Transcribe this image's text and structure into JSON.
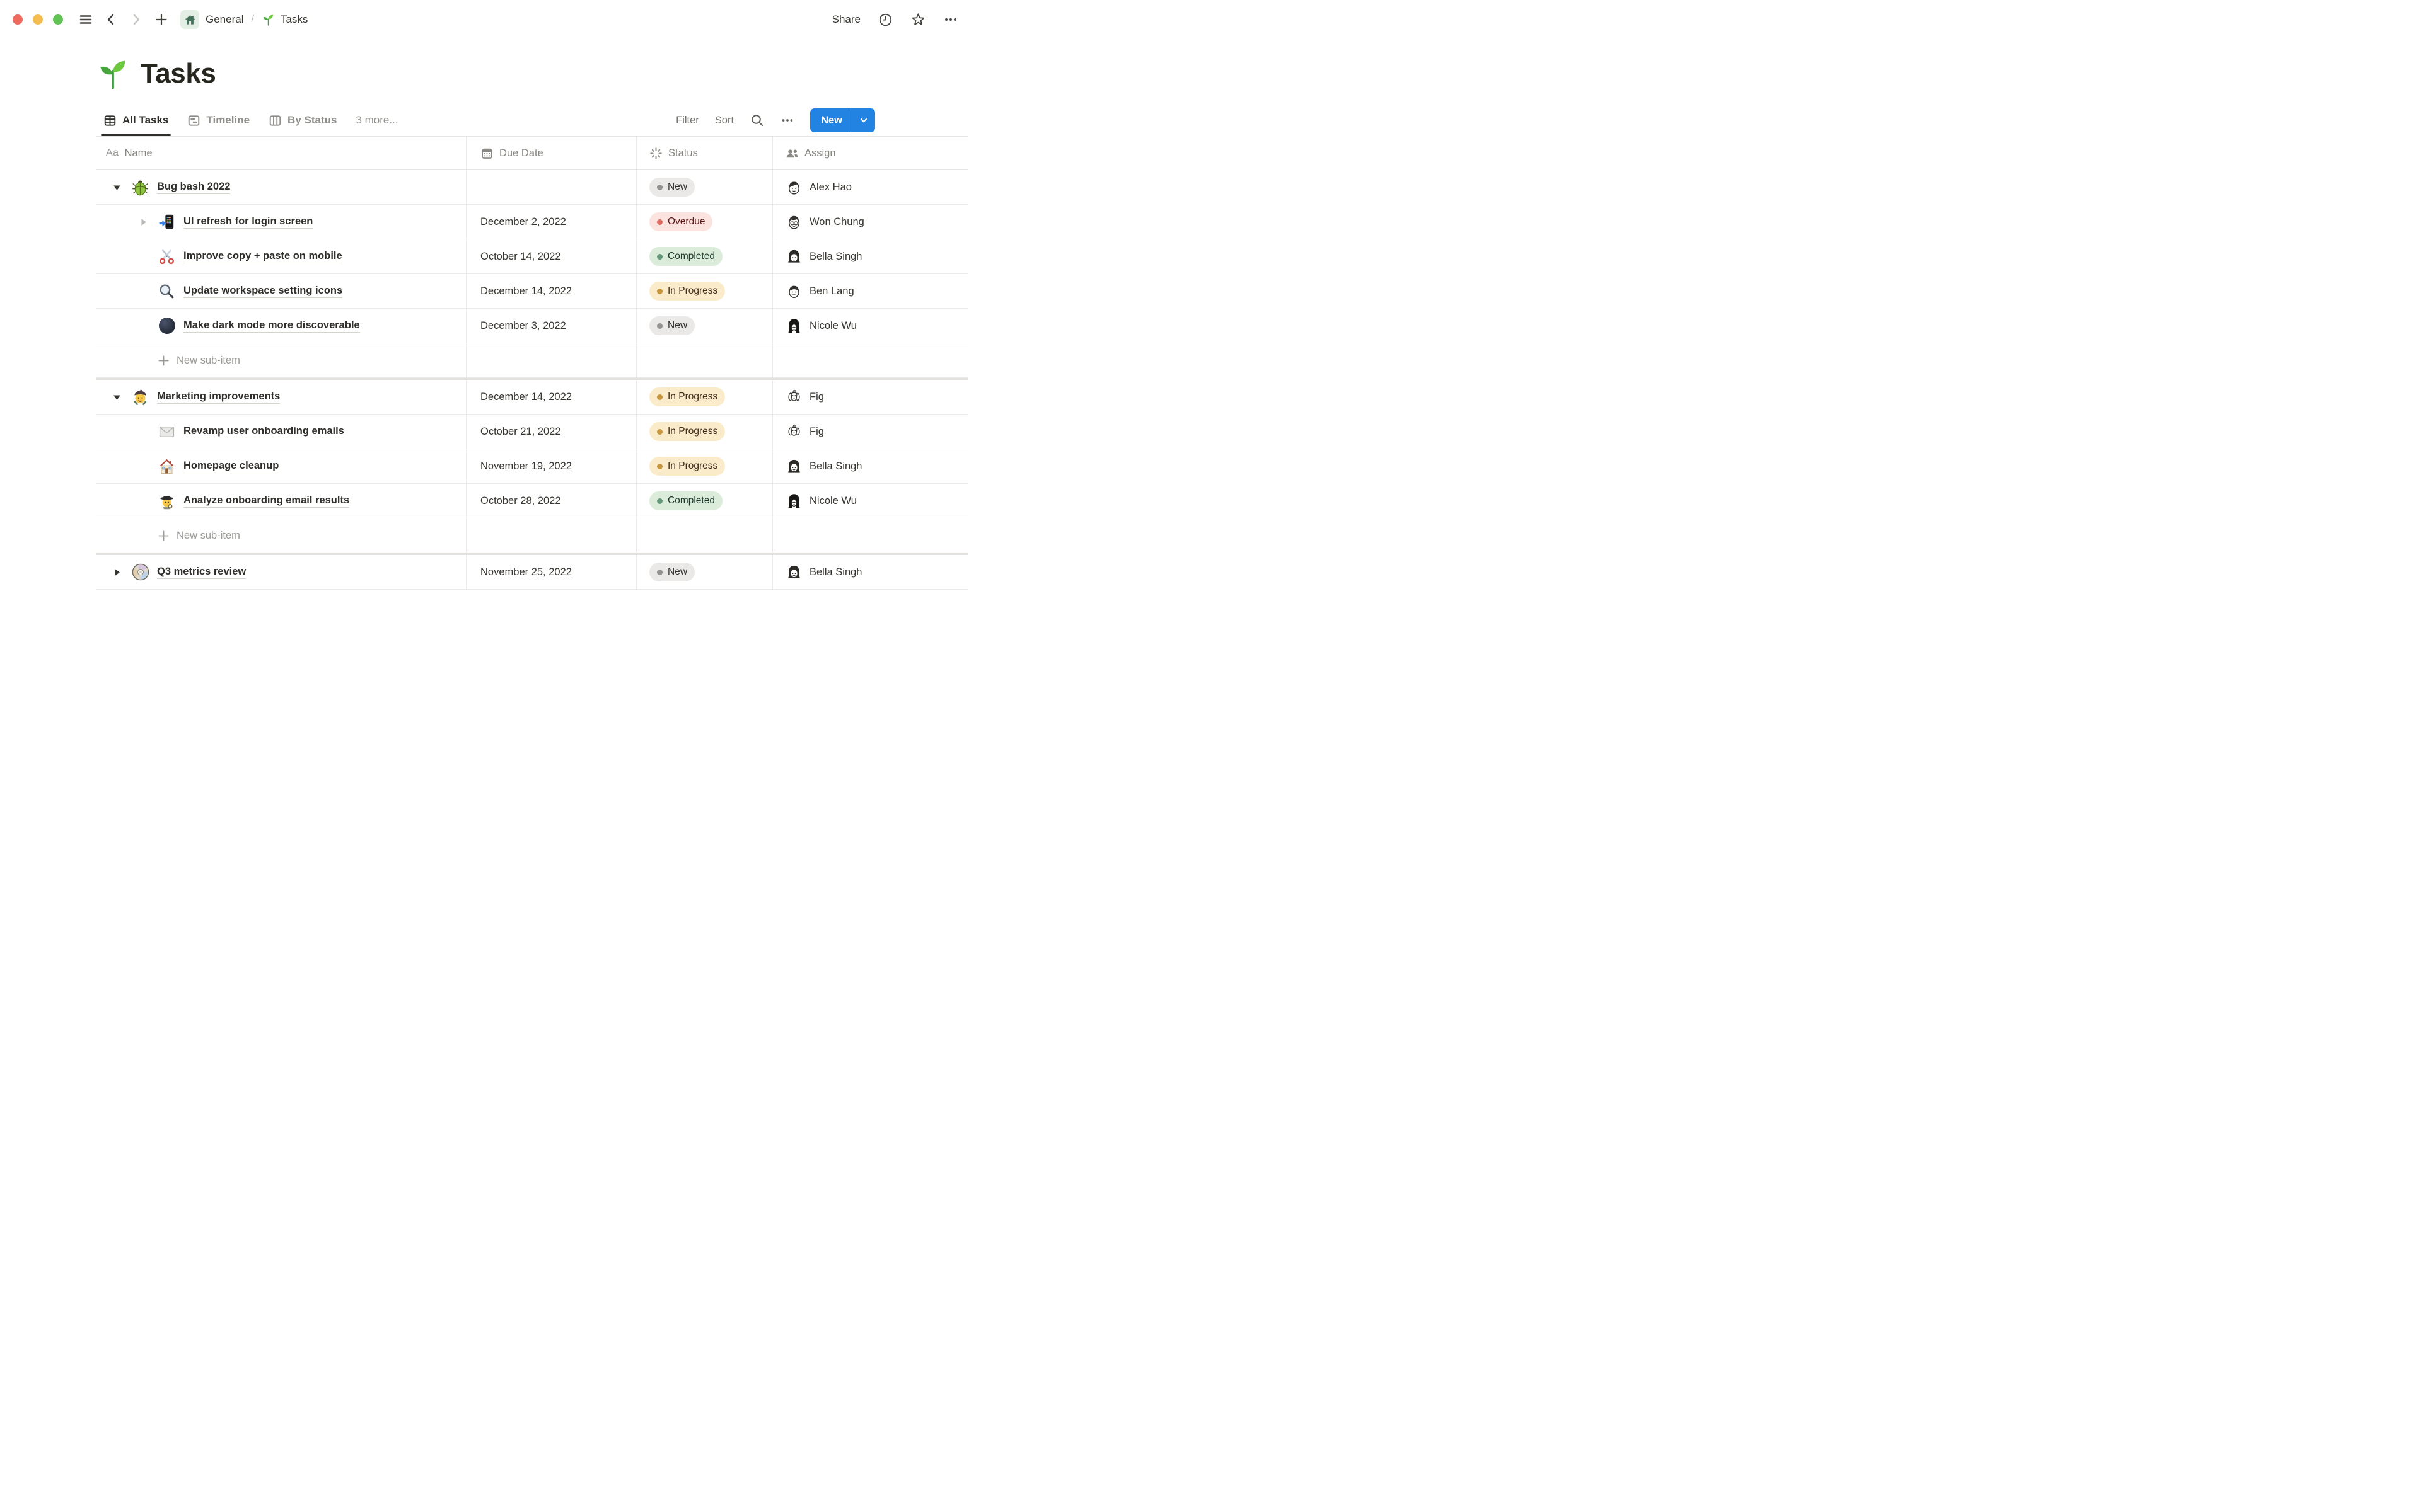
{
  "window": {
    "breadcrumb": {
      "workspace": "General",
      "separator": "/",
      "page": "Tasks",
      "workspace_icon": "home-icon",
      "page_icon": "seedling-icon"
    },
    "actions": {
      "share": "Share"
    },
    "icons": [
      "traffic-lights",
      "hamburger-icon",
      "back-icon",
      "forward-icon",
      "plus-icon",
      "clock-icon",
      "star-icon",
      "ellipsis-icon"
    ]
  },
  "page": {
    "title": "Tasks",
    "emoji": "seedling-icon"
  },
  "views": {
    "tabs": [
      {
        "label": "All Tasks",
        "icon": "table-view-icon",
        "active": true
      },
      {
        "label": "Timeline",
        "icon": "timeline-view-icon",
        "active": false
      },
      {
        "label": "By Status",
        "icon": "board-view-icon",
        "active": false
      },
      {
        "label": "3 more...",
        "icon": null,
        "active": false
      }
    ],
    "toolbar": {
      "filter": "Filter",
      "sort": "Sort",
      "search_icon": "search-icon",
      "more_icon": "ellipsis-icon",
      "new": "New",
      "new_caret_icon": "chevron-down-icon"
    }
  },
  "colors": {
    "accent_blue": "#2383e2",
    "status_tones": {
      "gray": {
        "bg": "#eae9e7",
        "dot": "#92918d",
        "text": "#32302c"
      },
      "red": {
        "bg": "#fbe3e0",
        "dot": "#dc6a61",
        "text": "#5d1715"
      },
      "green": {
        "bg": "#dcecdb",
        "dot": "#64967a",
        "text": "#1c3829"
      },
      "yellow": {
        "bg": "#faecca",
        "dot": "#c6953f",
        "text": "#402c1b"
      }
    }
  },
  "table": {
    "columns": [
      {
        "label": "Name",
        "icon": "text-icon",
        "icon_text": "Aa"
      },
      {
        "label": "Due Date",
        "icon": "calendar-icon"
      },
      {
        "label": "Status",
        "icon": "status-spinner-icon"
      },
      {
        "label": "Assign",
        "icon": "people-icon"
      }
    ],
    "new_sub_item_label": "New sub-item",
    "rows": [
      {
        "type": "task",
        "level": "group",
        "toggle": "down",
        "emoji": "beetle-icon",
        "name": "Bug bash 2022",
        "due": "",
        "status": {
          "label": "New",
          "tone": "gray"
        },
        "assignee": {
          "name": "Alex Hao",
          "avatar": "man-short-hair"
        }
      },
      {
        "type": "task",
        "level": "sub",
        "toggle": "right-muted",
        "emoji": "phone-arrow-icon",
        "name": "UI refresh for login screen",
        "due": "December 2, 2022",
        "status": {
          "label": "Overdue",
          "tone": "red"
        },
        "assignee": {
          "name": "Won Chung",
          "avatar": "man-glasses"
        }
      },
      {
        "type": "task",
        "level": "sub",
        "toggle": null,
        "emoji": "scissors-icon",
        "name": "Improve copy + paste on mobile",
        "due": "October 14, 2022",
        "status": {
          "label": "Completed",
          "tone": "green"
        },
        "assignee": {
          "name": "Bella Singh",
          "avatar": "woman-bob"
        }
      },
      {
        "type": "task",
        "level": "sub",
        "toggle": null,
        "emoji": "magnifier-icon",
        "name": "Update workspace setting icons",
        "due": "December 14, 2022",
        "status": {
          "label": "In Progress",
          "tone": "yellow"
        },
        "assignee": {
          "name": "Ben Lang",
          "avatar": "man-round"
        }
      },
      {
        "type": "task",
        "level": "sub",
        "toggle": null,
        "emoji": "new-moon-icon",
        "name": "Make dark mode more discoverable",
        "due": "December 3, 2022",
        "status": {
          "label": "New",
          "tone": "gray"
        },
        "assignee": {
          "name": "Nicole Wu",
          "avatar": "woman-long-hair"
        }
      },
      {
        "type": "new-sub-item"
      },
      {
        "type": "separator"
      },
      {
        "type": "task",
        "level": "group",
        "toggle": "down",
        "emoji": "artist-icon",
        "name": "Marketing improvements",
        "due": "December 14, 2022",
        "status": {
          "label": "In Progress",
          "tone": "yellow"
        },
        "assignee": {
          "name": "Fig",
          "avatar": "dog"
        }
      },
      {
        "type": "task",
        "level": "sub",
        "toggle": null,
        "emoji": "envelope-icon",
        "name": "Revamp user onboarding emails",
        "due": "October 21, 2022",
        "status": {
          "label": "In Progress",
          "tone": "yellow"
        },
        "assignee": {
          "name": "Fig",
          "avatar": "dog"
        }
      },
      {
        "type": "task",
        "level": "sub",
        "toggle": null,
        "emoji": "house-icon",
        "name": "Homepage cleanup",
        "due": "November 19, 2022",
        "status": {
          "label": "In Progress",
          "tone": "yellow"
        },
        "assignee": {
          "name": "Bella Singh",
          "avatar": "woman-bob"
        }
      },
      {
        "type": "task",
        "level": "sub",
        "toggle": null,
        "emoji": "detective-icon",
        "name": "Analyze onboarding email results",
        "due": "October 28, 2022",
        "status": {
          "label": "Completed",
          "tone": "green"
        },
        "assignee": {
          "name": "Nicole Wu",
          "avatar": "woman-long-hair"
        }
      },
      {
        "type": "new-sub-item"
      },
      {
        "type": "separator"
      },
      {
        "type": "task",
        "level": "group",
        "toggle": "right",
        "emoji": "cd-icon",
        "name": "Q3 metrics review",
        "due": "November 25, 2022",
        "status": {
          "label": "New",
          "tone": "gray"
        },
        "assignee": {
          "name": "Bella Singh",
          "avatar": "woman-bob"
        }
      }
    ]
  }
}
